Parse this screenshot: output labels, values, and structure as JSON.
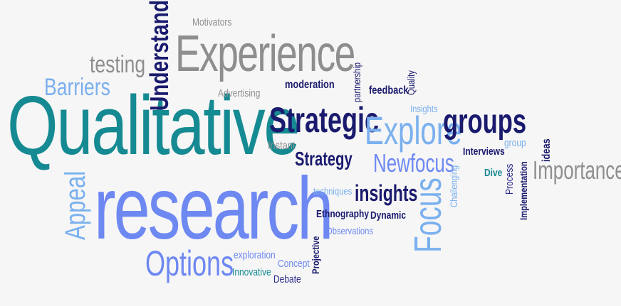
{
  "colors": {
    "background": "#f6f6f6",
    "teal": "#168a92",
    "periwinkle": "#6e88f2",
    "light_blue": "#7ab0ee",
    "navy": "#1a1a6e",
    "indigo": "#2a2a8a",
    "gray": "#8e8e8e"
  },
  "words": {
    "qualitative": "Qualitative",
    "research": "research",
    "experience": "Experience",
    "motivators": "Motivators",
    "testing": "testing",
    "understand": "Understand",
    "barriers": "Barriers",
    "advertising": "Advertising",
    "moderation": "moderation",
    "partnership": "partnership",
    "feedback": "feedback",
    "quality": "Quality",
    "insights_small": "Insights",
    "strategic": "Strategic",
    "explore": "Explore",
    "groups": "groups",
    "instant": "Instant",
    "strategy": "Strategy",
    "newfocus": "Newfocus",
    "interviews": "Interviews",
    "group": "group",
    "ideas": "ideas",
    "challenging": "Challenging",
    "dive": "Dive",
    "process": "Process",
    "implementation": "Implementation",
    "importance": "Importance",
    "appeal": "Appeal",
    "techniques": "techniques",
    "insights": "insights",
    "focus": "Focus",
    "ethnography": "Ethnography",
    "dynamic": "Dynamic",
    "observations": "Observations",
    "options": "Options",
    "exploration": "exploration",
    "innovative": "Innovative",
    "concept": "Concept",
    "projective": "Projective",
    "debate": "Debate"
  }
}
